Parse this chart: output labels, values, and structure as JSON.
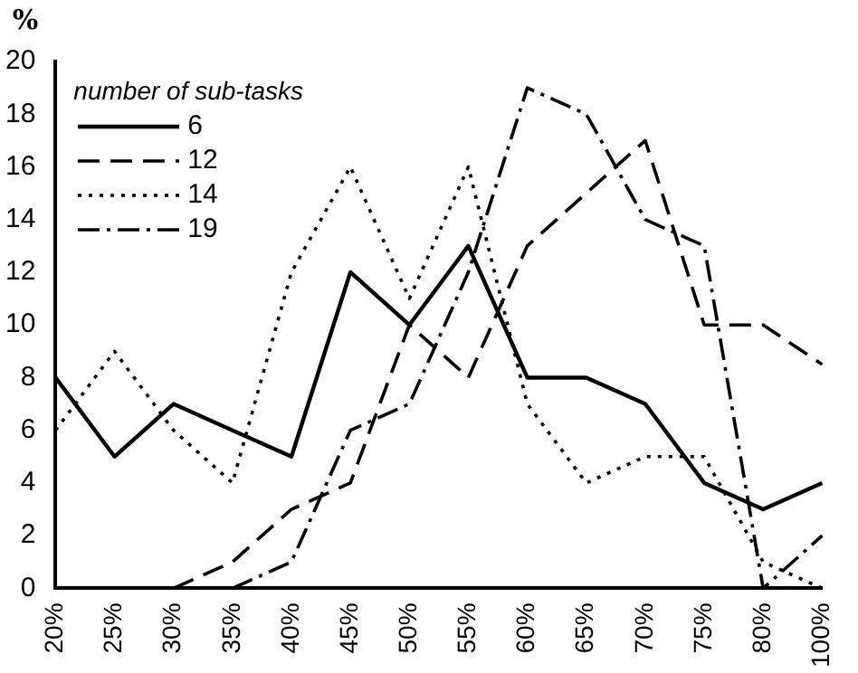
{
  "chart_data": {
    "type": "line",
    "ylabel": "%",
    "legend_title": "number of sub-tasks",
    "categories": [
      "20%",
      "25%",
      "30%",
      "35%",
      "40%",
      "45%",
      "50%",
      "55%",
      "60%",
      "65%",
      "70%",
      "75%",
      "80%",
      "100%"
    ],
    "series": [
      {
        "name": "6",
        "color": "#000000",
        "line_style": "solid",
        "values": [
          8,
          5,
          7,
          6,
          5,
          12,
          10,
          13,
          8,
          8,
          7,
          4,
          3,
          4
        ]
      },
      {
        "name": "12",
        "color": "#000000",
        "line_style": "dashed",
        "values": [
          null,
          null,
          0,
          1,
          3,
          4,
          10,
          8,
          13,
          15,
          17,
          10,
          10,
          8.5
        ]
      },
      {
        "name": "14",
        "color": "#000000",
        "line_style": "dotted",
        "values": [
          6,
          9,
          6,
          4,
          12,
          16,
          11,
          16,
          7,
          4,
          5,
          5,
          1,
          0
        ]
      },
      {
        "name": "19",
        "color": "#000000",
        "line_style": "dashdot",
        "values": [
          null,
          null,
          null,
          0,
          1,
          6,
          7,
          12,
          19,
          18,
          14,
          13,
          0,
          2
        ]
      }
    ],
    "ylim": [
      0,
      20
    ],
    "yticks": [
      0,
      2,
      4,
      6,
      8,
      10,
      12,
      14,
      16,
      18,
      20
    ],
    "grid": false,
    "legend": "top left",
    "marker": "none"
  }
}
